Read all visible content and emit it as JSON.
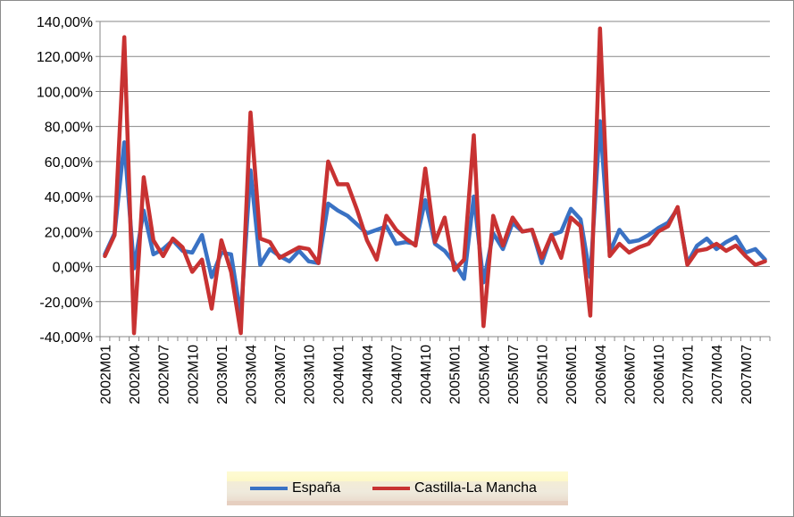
{
  "chart_data": {
    "type": "line",
    "title": "",
    "xlabel": "",
    "ylabel": "",
    "ylim": [
      -40,
      140
    ],
    "yticks": [
      -40,
      -20,
      0,
      20,
      40,
      60,
      80,
      100,
      120,
      140
    ],
    "ytick_labels": [
      "-40,00%",
      "-20,00%",
      "0,00%",
      "20,00%",
      "40,00%",
      "60,00%",
      "80,00%",
      "100,00%",
      "120,00%",
      "140,00%"
    ],
    "x": [
      "2002M01",
      "2002M02",
      "2002M03",
      "2002M04",
      "2002M05",
      "2002M06",
      "2002M07",
      "2002M08",
      "2002M09",
      "2002M10",
      "2002M11",
      "2002M12",
      "2003M01",
      "2003M02",
      "2003M03",
      "2003M04",
      "2003M05",
      "2003M06",
      "2003M07",
      "2003M08",
      "2003M09",
      "2003M10",
      "2003M11",
      "2003M12",
      "2004M01",
      "2004M02",
      "2004M03",
      "2004M04",
      "2004M05",
      "2004M06",
      "2004M07",
      "2004M08",
      "2004M09",
      "2004M10",
      "2004M11",
      "2004M12",
      "2005M01",
      "2005M02",
      "2005M03",
      "2005M04",
      "2005M05",
      "2005M06",
      "2005M07",
      "2005M08",
      "2005M09",
      "2005M10",
      "2005M11",
      "2005M12",
      "2006M01",
      "2006M02",
      "2006M03",
      "2006M04",
      "2006M05",
      "2006M06",
      "2006M07",
      "2006M08",
      "2006M09",
      "2006M10",
      "2006M11",
      "2006M12",
      "2007M01",
      "2007M02",
      "2007M03",
      "2007M04",
      "2007M05",
      "2007M06",
      "2007M07",
      "2007M08",
      "2007M09"
    ],
    "xtick_labels": [
      "2002M01",
      "2002M04",
      "2002M07",
      "2002M10",
      "2003M01",
      "2003M04",
      "2003M07",
      "2003M10",
      "2004M01",
      "2004M04",
      "2004M07",
      "2004M10",
      "2005M01",
      "2005M04",
      "2005M07",
      "2005M10",
      "2006M01",
      "2006M04",
      "2006M07",
      "2006M10",
      "2007M01",
      "2007M04",
      "2007M07"
    ],
    "grid": true,
    "legend": "bottom",
    "series": [
      {
        "name": "España",
        "color": "#3a72c4",
        "values": [
          7,
          19,
          71,
          -1,
          32,
          7,
          10,
          15,
          9,
          8,
          18,
          -6,
          8,
          7,
          -28,
          55,
          1,
          10,
          6,
          3,
          9,
          3,
          2,
          36,
          32,
          29,
          24,
          19,
          21,
          23,
          13,
          14,
          13,
          38,
          13,
          9,
          2,
          -7,
          40,
          -9,
          19,
          10,
          25,
          20,
          21,
          2,
          18,
          20,
          33,
          27,
          -6,
          83,
          8,
          21,
          14,
          15,
          18,
          22,
          25,
          33,
          2,
          12,
          16,
          10,
          14,
          17,
          8,
          10,
          4
        ]
      },
      {
        "name": "Castilla-La Mancha",
        "color": "#c83232",
        "values": [
          6,
          18,
          131,
          -38,
          51,
          15,
          6,
          16,
          11,
          -3,
          4,
          -24,
          15,
          -3,
          -38,
          88,
          16,
          14,
          5,
          8,
          11,
          10,
          2,
          60,
          47,
          47,
          32,
          15,
          4,
          29,
          21,
          16,
          12,
          56,
          14,
          28,
          -2,
          4,
          75,
          -34,
          29,
          12,
          28,
          20,
          21,
          5,
          18,
          5,
          28,
          23,
          -28,
          136,
          6,
          13,
          8,
          11,
          13,
          20,
          23,
          34,
          1,
          9,
          10,
          13,
          9,
          12,
          6,
          1,
          3
        ]
      }
    ]
  }
}
